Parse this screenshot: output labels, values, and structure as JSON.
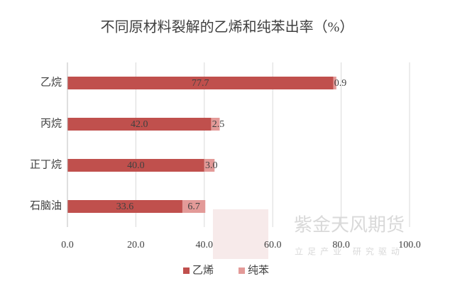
{
  "chart_data": {
    "type": "hbar-stacked",
    "title": "不同原材料裂解的乙烯和纯苯出率（%）",
    "categories": [
      "乙烷",
      "丙烷",
      "正丁烷",
      "石脑油"
    ],
    "series": [
      {
        "name": "乙烯",
        "color": "#c0504d",
        "values": [
          77.7,
          42.0,
          40.0,
          33.6
        ],
        "value_labels": [
          "77.7",
          "42.0",
          "40.0",
          "33.6"
        ]
      },
      {
        "name": "纯苯",
        "color": "#e39a98",
        "values": [
          0.9,
          2.5,
          3.0,
          6.7
        ],
        "value_labels": [
          "0.9",
          "2.5",
          "3.0",
          "6.7"
        ]
      }
    ],
    "xlim": [
      0,
      100
    ],
    "xticks": [
      {
        "value": 0,
        "label": "0.0"
      },
      {
        "value": 20,
        "label": "20.0"
      },
      {
        "value": 40,
        "label": "40.0"
      },
      {
        "value": 60,
        "label": "60.0"
      },
      {
        "value": 80,
        "label": "80.0"
      },
      {
        "value": 100,
        "label": "100.0"
      }
    ],
    "grid": true,
    "legend": "bottom"
  },
  "watermark": {
    "name": "紫金天风期货",
    "slogan": "立足产业 研究驱动"
  }
}
